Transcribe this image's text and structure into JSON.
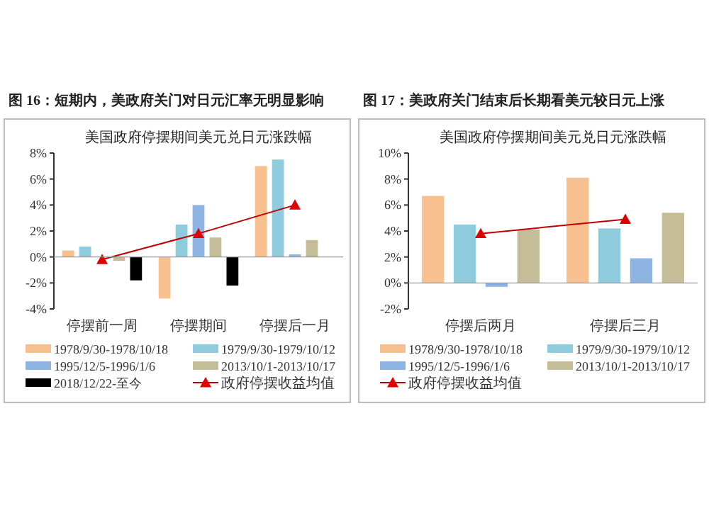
{
  "chart_data": [
    {
      "type": "bar",
      "title": "图 16：短期内，美政府关门对日元汇率无明显影响",
      "subtitle": "美国政府停摆期间美元兑日元涨跌幅",
      "categories": [
        "停摆前一周",
        "停摆期间",
        "停摆后一月"
      ],
      "series": [
        {
          "name": "1978/9/30-1978/10/18",
          "color": "#f9c08f",
          "values": [
            0.5,
            -3.2,
            7.0
          ]
        },
        {
          "name": "1979/9/30-1979/10/12",
          "color": "#8dcbdd",
          "values": [
            0.8,
            2.5,
            7.5
          ]
        },
        {
          "name": "1995/12/5-1996/1/6",
          "color": "#8eb4e3",
          "values": [
            null,
            4.0,
            0.2
          ]
        },
        {
          "name": "2013/10/1-2013/10/17",
          "color": "#c4bd97",
          "values": [
            -0.3,
            1.5,
            1.3
          ]
        },
        {
          "name": "2018/12/22-至今",
          "color": "#000000",
          "values": [
            -1.8,
            -2.2,
            null
          ]
        },
        {
          "name": "政府停摆收益均值",
          "type": "line",
          "color": "#c00000",
          "marker": "triangle",
          "values": [
            -0.2,
            1.8,
            4.0
          ]
        }
      ],
      "ylim": [
        -4,
        8
      ],
      "yticks": [
        {
          "value": -4,
          "label": "-4%"
        },
        {
          "value": -2,
          "label": "-2%"
        },
        {
          "value": 0,
          "label": "0%"
        },
        {
          "value": 2,
          "label": "2%"
        },
        {
          "value": 4,
          "label": "4%"
        },
        {
          "value": 6,
          "label": "6%"
        },
        {
          "value": 8,
          "label": "8%"
        }
      ],
      "legend": "bottom"
    },
    {
      "type": "bar",
      "title": "图 17：美政府关门结束后长期看美元较日元上涨",
      "subtitle": "美国政府停摆期间美元兑日元涨跌幅",
      "categories": [
        "停摆后两月",
        "停摆后三月"
      ],
      "series": [
        {
          "name": "1978/9/30-1978/10/18",
          "color": "#f9c08f",
          "values": [
            6.7,
            8.1
          ]
        },
        {
          "name": "1979/9/30-1979/10/12",
          "color": "#8dcbdd",
          "values": [
            4.5,
            4.2
          ]
        },
        {
          "name": "1995/12/5-1996/1/6",
          "color": "#8eb4e3",
          "values": [
            -0.3,
            1.9
          ]
        },
        {
          "name": "2013/10/1-2013/10/17",
          "color": "#c4bd97",
          "values": [
            4.1,
            5.4
          ]
        },
        {
          "name": "政府停摆收益均值",
          "type": "line",
          "color": "#c00000",
          "marker": "triangle",
          "values": [
            3.8,
            4.9
          ]
        }
      ],
      "ylim": [
        -2,
        10
      ],
      "yticks": [
        {
          "value": -2,
          "label": "-2%"
        },
        {
          "value": 0,
          "label": "0%"
        },
        {
          "value": 2,
          "label": "2%"
        },
        {
          "value": 4,
          "label": "4%"
        },
        {
          "value": 6,
          "label": "6%"
        },
        {
          "value": 8,
          "label": "8%"
        },
        {
          "value": 10,
          "label": "10%"
        }
      ],
      "legend": "bottom"
    }
  ]
}
